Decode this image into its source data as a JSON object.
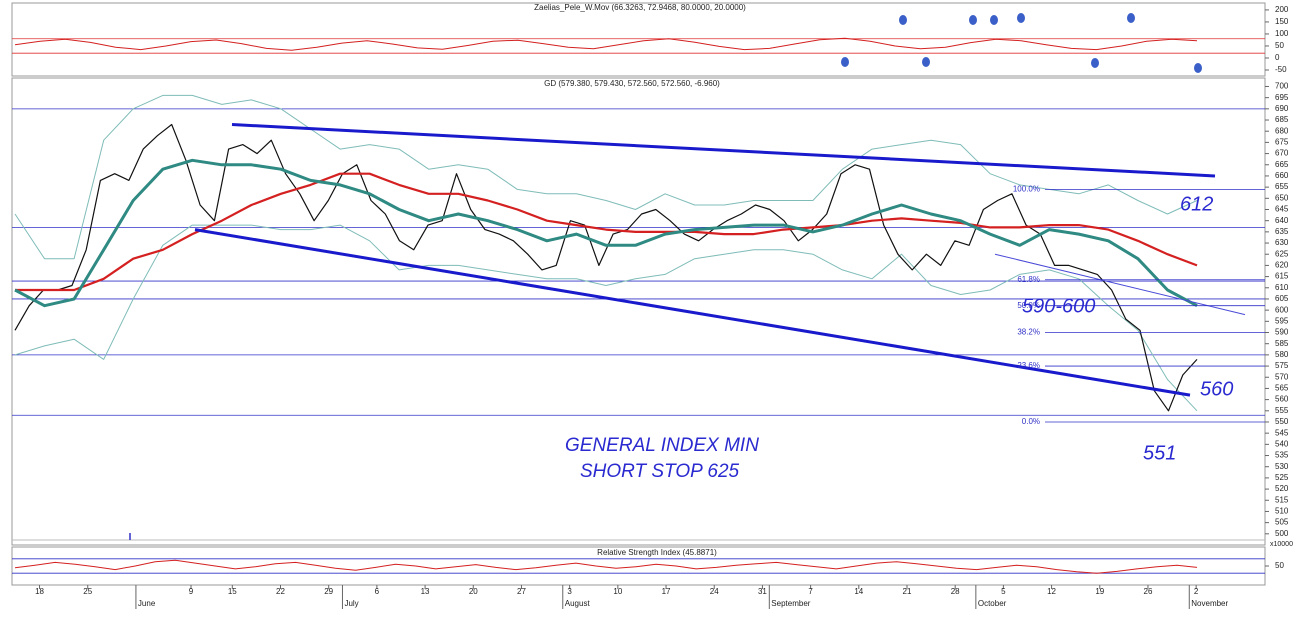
{
  "chart_data": [
    {
      "type": "line",
      "title": "Zaelias_Pele_W.Mov (66.3263, 72.9468, 80.0000, 20.0000)",
      "ylim": [
        -75,
        208
      ],
      "yticks": [
        200,
        150,
        100,
        50,
        0,
        -50
      ],
      "levels": [
        80,
        20
      ],
      "level_color": "#e03030",
      "series": [
        {
          "color": "#d42020",
          "values": [
            55,
            70,
            78,
            65,
            45,
            35,
            50,
            68,
            75,
            60,
            40,
            32,
            45,
            62,
            72,
            58,
            42,
            36,
            52,
            70,
            74,
            60,
            45,
            38,
            55,
            72,
            80,
            66,
            48,
            35,
            40,
            58,
            76,
            82,
            70,
            50,
            38,
            45,
            64,
            78,
            72,
            55,
            40,
            35,
            50,
            70,
            78,
            72
          ]
        }
      ]
    },
    {
      "type": "line",
      "title": "GD (579.380, 579.430, 572.560, 572.560, -6.960)",
      "ylim": [
        495,
        702
      ],
      "yticks": [
        700,
        695,
        690,
        685,
        680,
        675,
        670,
        665,
        660,
        655,
        650,
        645,
        640,
        635,
        630,
        625,
        620,
        615,
        610,
        605,
        600,
        595,
        590,
        585,
        580,
        575,
        570,
        565,
        560,
        555,
        550,
        545,
        540,
        535,
        530,
        525,
        520,
        515,
        510,
        505,
        500
      ],
      "levels": [
        690,
        637,
        613,
        605,
        580,
        553
      ],
      "level_color": "#3030c8",
      "volume_label": "x10000",
      "series": [
        {
          "color": "#7fbcb8",
          "width": 1,
          "values": [
            643,
            623,
            623,
            676,
            690,
            696,
            696,
            692,
            694,
            690,
            681,
            672,
            674,
            672,
            663,
            665,
            663,
            654,
            652,
            652,
            649,
            645,
            652,
            647,
            647,
            649,
            649,
            649,
            663,
            672,
            674,
            676,
            674,
            661,
            656,
            654,
            652,
            656,
            649,
            643,
            649
          ]
        },
        {
          "color": "#7fbcb8",
          "width": 1,
          "values": [
            580,
            584,
            587,
            578,
            605,
            629,
            638,
            638,
            638,
            636,
            636,
            638,
            631,
            618,
            620,
            620,
            618,
            616,
            614,
            614,
            611,
            614,
            616,
            623,
            625,
            627,
            627,
            625,
            618,
            614,
            625,
            611,
            607,
            609,
            616,
            618,
            614,
            602,
            591,
            569,
            555
          ]
        },
        {
          "color": "#111111",
          "width": 1.2,
          "values": [
            591,
            602,
            609,
            609,
            611,
            627,
            658,
            661,
            658,
            672,
            678,
            683,
            667,
            647,
            640,
            672,
            674,
            670,
            676,
            661,
            652,
            640,
            649,
            661,
            665,
            649,
            643,
            631,
            627,
            638,
            640,
            661,
            645,
            636,
            634,
            631,
            625,
            618,
            620,
            640,
            638,
            620,
            634,
            636,
            643,
            645,
            640,
            634,
            631,
            636,
            640,
            643,
            647,
            645,
            640,
            631,
            636,
            643,
            661,
            665,
            663,
            638,
            625,
            618,
            625,
            620,
            631,
            629,
            645,
            649,
            652,
            638,
            634,
            620,
            620,
            618,
            616,
            609,
            596,
            591,
            564,
            555,
            571,
            578
          ]
        },
        {
          "color": "#d42020",
          "width": 2.2,
          "values": [
            609,
            609,
            609,
            614,
            623,
            627,
            634,
            640,
            647,
            652,
            656,
            661,
            661,
            656,
            652,
            652,
            649,
            645,
            640,
            638,
            636,
            635,
            635,
            635,
            634,
            634,
            636,
            637,
            638,
            640,
            641,
            640,
            639,
            637,
            637,
            638,
            638,
            636,
            631,
            625,
            620
          ]
        },
        {
          "color": "#2e8a82",
          "width": 3,
          "values": [
            609,
            602,
            605,
            627,
            649,
            663,
            667,
            665,
            665,
            663,
            658,
            656,
            652,
            645,
            640,
            643,
            640,
            636,
            631,
            634,
            629,
            629,
            634,
            636,
            637,
            638,
            638,
            635,
            638,
            643,
            647,
            643,
            640,
            634,
            629,
            636,
            634,
            631,
            623,
            609,
            602
          ]
        }
      ],
      "trend_lines": [
        {
          "color": "#1a1acd",
          "values": [
            683,
            660
          ]
        },
        {
          "color": "#1a1acd",
          "values": [
            636,
            562
          ]
        },
        {
          "color": "#4a4ad8",
          "values": [
            625,
            598
          ]
        }
      ],
      "fib_levels": [
        {
          "label": "100.0%",
          "value": 654
        },
        {
          "label": "61.8%",
          "value": 613.6
        },
        {
          "label": "50.0%",
          "value": 602
        },
        {
          "label": "38.2%",
          "value": 590
        },
        {
          "label": "23.6%",
          "value": 575
        },
        {
          "label": "0.0%",
          "value": 550
        }
      ],
      "annotations": [
        "612",
        "590-600",
        "560",
        "551",
        "GENERAL INDEX MIN",
        "SHORT STOP 625"
      ]
    },
    {
      "type": "line",
      "title": "Relative Strength Index (45.8871)",
      "ylim": [
        0,
        100
      ],
      "yticks": [
        50
      ],
      "levels": [
        70,
        30
      ],
      "level_color": "#3030c8",
      "series": [
        {
          "color": "#d42020",
          "values": [
            45,
            52,
            60,
            55,
            48,
            40,
            50,
            62,
            66,
            58,
            50,
            42,
            48,
            56,
            60,
            52,
            44,
            38,
            46,
            55,
            50,
            42,
            48,
            54,
            46,
            40,
            45,
            52,
            58,
            50,
            44,
            48,
            55,
            50,
            42,
            46,
            52,
            56,
            60,
            54,
            48,
            42,
            50,
            58,
            62,
            56,
            50,
            44,
            40,
            46,
            52,
            48,
            40,
            34,
            30,
            35,
            42,
            48,
            52,
            46
          ]
        }
      ],
      "xlim": [
        -4,
        178
      ],
      "xticks": [
        {
          "value": 0,
          "label": "18"
        },
        {
          "value": 7,
          "label": "25"
        },
        {
          "value": 22,
          "label": "9"
        },
        {
          "value": 28,
          "label": "15"
        },
        {
          "value": 35,
          "label": "22"
        },
        {
          "value": 42,
          "label": "29"
        },
        {
          "value": 49,
          "label": "6"
        },
        {
          "value": 56,
          "label": "13"
        },
        {
          "value": 63,
          "label": "20"
        },
        {
          "value": 70,
          "label": "27"
        },
        {
          "value": 77,
          "label": "3"
        },
        {
          "value": 84,
          "label": "10"
        },
        {
          "value": 91,
          "label": "17"
        },
        {
          "value": 98,
          "label": "24"
        },
        {
          "value": 105,
          "label": "31"
        },
        {
          "value": 112,
          "label": "7"
        },
        {
          "value": 119,
          "label": "14"
        },
        {
          "value": 126,
          "label": "21"
        },
        {
          "value": 133,
          "label": "28"
        },
        {
          "value": 140,
          "label": "5"
        },
        {
          "value": 147,
          "label": "12"
        },
        {
          "value": 154,
          "label": "19"
        },
        {
          "value": 161,
          "label": "26"
        },
        {
          "value": 168,
          "label": "2"
        }
      ],
      "month_ticks": [
        {
          "value": 14,
          "label": "June"
        },
        {
          "value": 44,
          "label": "July"
        },
        {
          "value": 76,
          "label": "August"
        },
        {
          "value": 106,
          "label": "September"
        },
        {
          "value": 136,
          "label": "October"
        },
        {
          "value": 167,
          "label": "November"
        }
      ]
    }
  ]
}
